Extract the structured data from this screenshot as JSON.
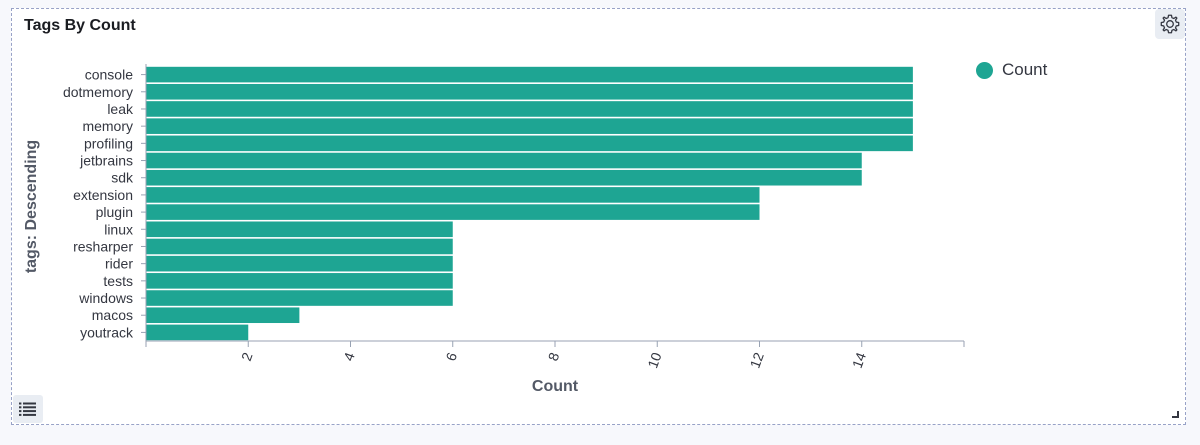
{
  "panel": {
    "title": "Tags By Count"
  },
  "icons": {
    "settings": "gear-icon",
    "legend_toggle": "list-icon",
    "resize": "resize-handle-icon"
  },
  "colors": {
    "bar": "#1ea593",
    "axis": "#98a2b3",
    "grid": "#c5cbd6"
  },
  "chart_data": {
    "type": "bar",
    "orientation": "horizontal",
    "title": "",
    "xlabel": "Count",
    "ylabel": "tags: Descending",
    "categories": [
      "console",
      "dotmemory",
      "leak",
      "memory",
      "profiling",
      "jetbrains",
      "sdk",
      "extension",
      "plugin",
      "linux",
      "resharper",
      "rider",
      "tests",
      "windows",
      "macos",
      "youtrack"
    ],
    "series": [
      {
        "name": "Count",
        "values": [
          15,
          15,
          15,
          15,
          15,
          14,
          14,
          12,
          12,
          6,
          6,
          6,
          6,
          6,
          3,
          2
        ]
      }
    ],
    "xlim": [
      0,
      16
    ],
    "xticks": [
      2,
      4,
      6,
      8,
      10,
      12,
      14
    ],
    "grid": false,
    "legend_position": "top-right"
  }
}
